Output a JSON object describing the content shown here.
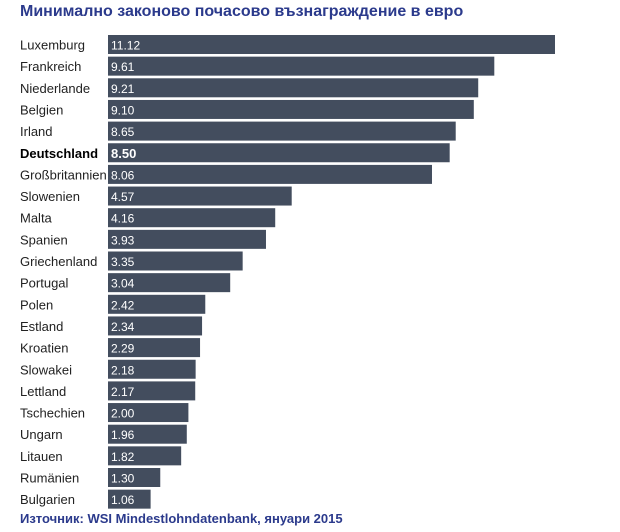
{
  "chart_data": {
    "type": "bar",
    "orientation": "horizontal",
    "title": "Минимално законово почасово възнаграждение в евро",
    "source": "Източник: WSI Mindestlohndatenbank, януари 2015",
    "bar_color": "#434d5e",
    "title_color": "#2b3a8c",
    "highlight_category": "Deutschland",
    "categories": [
      "Luxemburg",
      "Frankreich",
      "Niederlande",
      "Belgien",
      "Irland",
      "Deutschland",
      "Großbritannien",
      "Slowenien",
      "Malta",
      "Spanien",
      "Griechenland",
      "Portugal",
      "Polen",
      "Estland",
      "Kroatien",
      "Slowakei",
      "Lettland",
      "Tschechien",
      "Ungarn",
      "Litauen",
      "Rumänien",
      "Bulgarien"
    ],
    "values": [
      11.12,
      9.61,
      9.21,
      9.1,
      8.65,
      8.5,
      8.06,
      4.57,
      4.16,
      3.93,
      3.35,
      3.04,
      2.42,
      2.34,
      2.29,
      2.18,
      2.17,
      2.0,
      1.96,
      1.82,
      1.3,
      1.06
    ],
    "value_labels": [
      "11.12",
      "9.61",
      "9.21",
      "9.10",
      "8.65",
      "8.50",
      "8.06",
      "4.57",
      "4.16",
      "3.93",
      "3.35",
      "3.04",
      "2.42",
      "2.34",
      "2.29",
      "2.18",
      "2.17",
      "2.00",
      "1.96",
      "1.82",
      "1.30",
      "1.06"
    ],
    "xlim": [
      0,
      11.12
    ],
    "grid": false,
    "legend": "none"
  }
}
